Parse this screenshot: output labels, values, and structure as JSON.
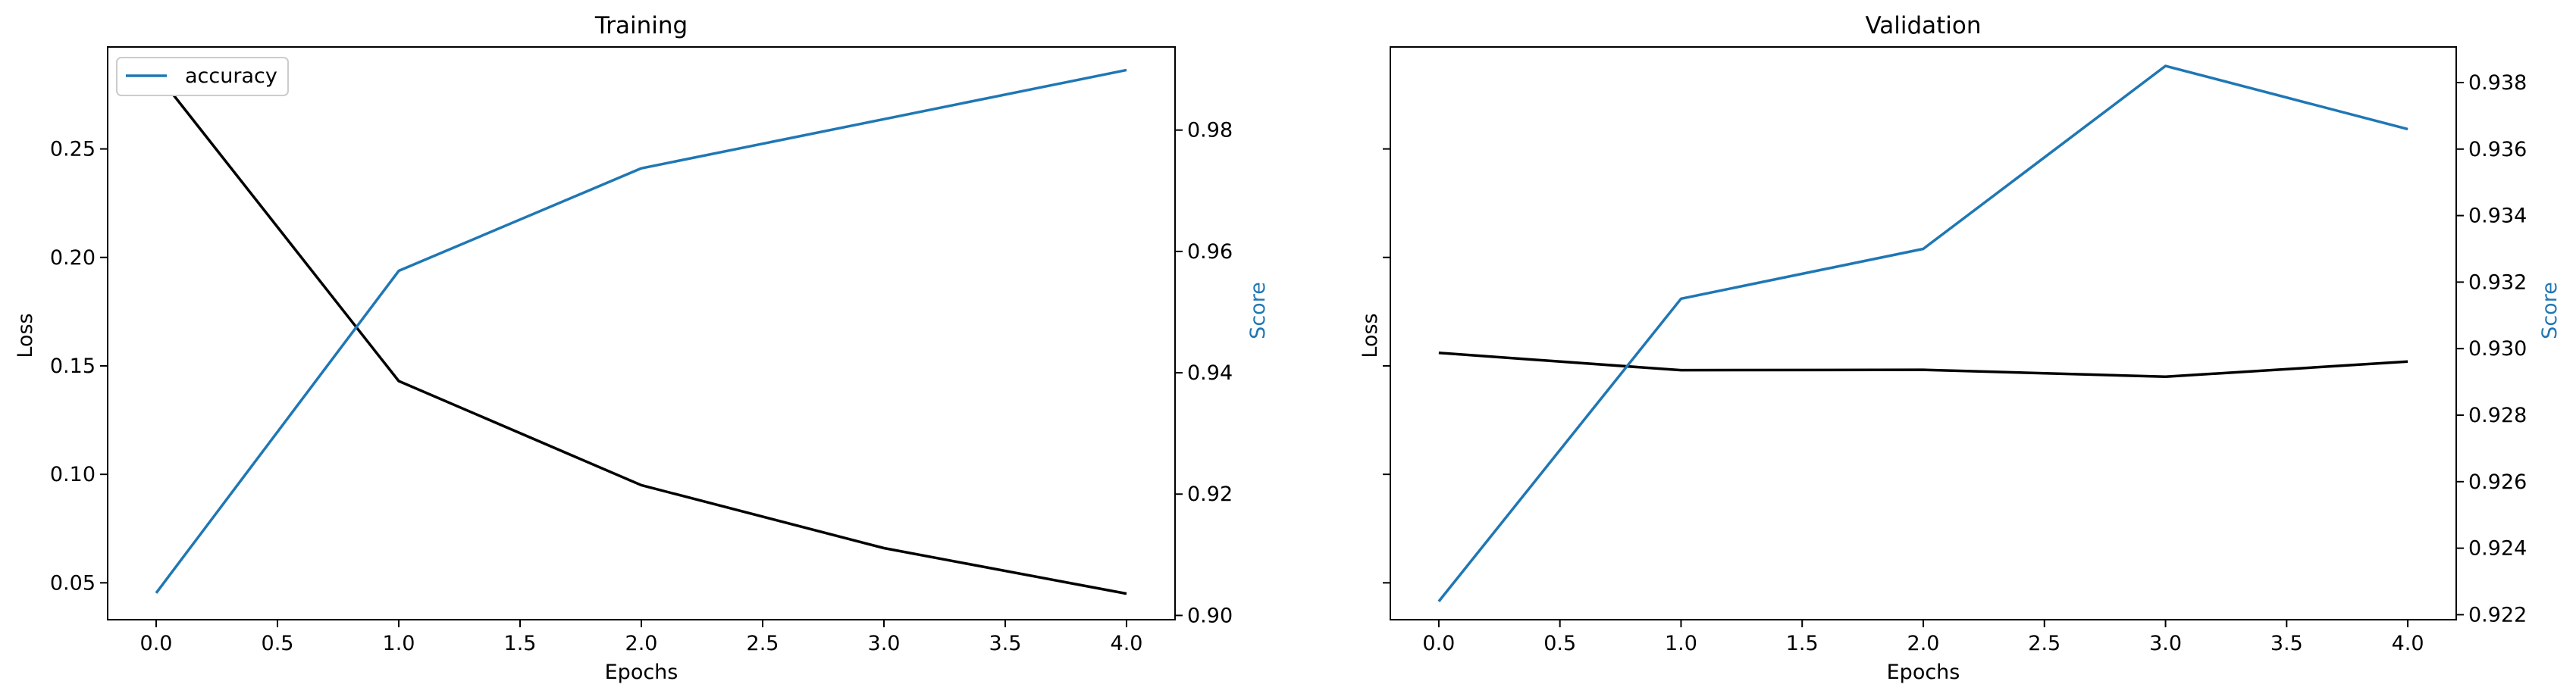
{
  "colors": {
    "loss": "#000000",
    "score": "#1f77b4",
    "axis": "#000000",
    "background": "#ffffff"
  },
  "chart_data": [
    {
      "type": "line",
      "title": "Training",
      "xlabel": "Epochs",
      "ylabel": "Loss",
      "ylabel_right": "Score",
      "xlim": [
        -0.2,
        4.2
      ],
      "xticks": [
        0.0,
        0.5,
        1.0,
        1.5,
        2.0,
        2.5,
        3.0,
        3.5,
        4.0
      ],
      "xtick_labels": [
        "0.0",
        "0.5",
        "1.0",
        "1.5",
        "2.0",
        "2.5",
        "3.0",
        "3.5",
        "4.0"
      ],
      "ylim": [
        0.033,
        0.297
      ],
      "yticks": [
        0.05,
        0.1,
        0.15,
        0.2,
        0.25
      ],
      "ytick_labels": [
        "0.05",
        "0.10",
        "0.15",
        "0.20",
        "0.25"
      ],
      "ylim_right": [
        0.8993,
        0.9937
      ],
      "yticks_right": [
        0.9,
        0.92,
        0.94,
        0.96,
        0.98
      ],
      "ytick_labels_right": [
        "0.90",
        "0.92",
        "0.94",
        "0.96",
        "0.98"
      ],
      "legend": {
        "placement": "upper-left",
        "entries": [
          "accuracy"
        ]
      },
      "grid": false,
      "x": [
        0,
        1,
        2,
        3,
        4
      ],
      "loss": [
        0.285,
        0.143,
        0.095,
        0.066,
        0.045
      ],
      "score": {
        "name": "accuracy",
        "values": [
          0.9037,
          0.9568,
          0.9737,
          0.9818,
          0.9899
        ]
      }
    },
    {
      "type": "line",
      "title": "Validation",
      "xlabel": "Epochs",
      "ylabel": "Loss",
      "ylabel_right": "Score",
      "xlim": [
        -0.2,
        4.2
      ],
      "xticks": [
        0.0,
        0.5,
        1.0,
        1.5,
        2.0,
        2.5,
        3.0,
        3.5,
        4.0
      ],
      "xtick_labels": [
        "0.0",
        "0.5",
        "1.0",
        "1.5",
        "2.0",
        "2.5",
        "3.0",
        "3.5",
        "4.0"
      ],
      "ylim": [
        0.033,
        0.297
      ],
      "yticks": [
        0.05,
        0.1,
        0.15,
        0.2,
        0.25
      ],
      "ytick_labels": [
        "",
        "",
        "",
        "",
        ""
      ],
      "ylim_right": [
        0.92185,
        0.93907
      ],
      "yticks_right": [
        0.922,
        0.924,
        0.926,
        0.928,
        0.93,
        0.932,
        0.934,
        0.936,
        0.938
      ],
      "ytick_labels_right": [
        "0.922",
        "0.924",
        "0.926",
        "0.928",
        "0.930",
        "0.932",
        "0.934",
        "0.936",
        "0.938"
      ],
      "grid": false,
      "x": [
        0,
        1,
        2,
        3,
        4
      ],
      "loss": [
        0.156,
        0.148,
        0.1482,
        0.145,
        0.152
      ],
      "score": {
        "values": [
          0.9224,
          0.9315,
          0.933,
          0.9385,
          0.9366
        ]
      }
    }
  ]
}
